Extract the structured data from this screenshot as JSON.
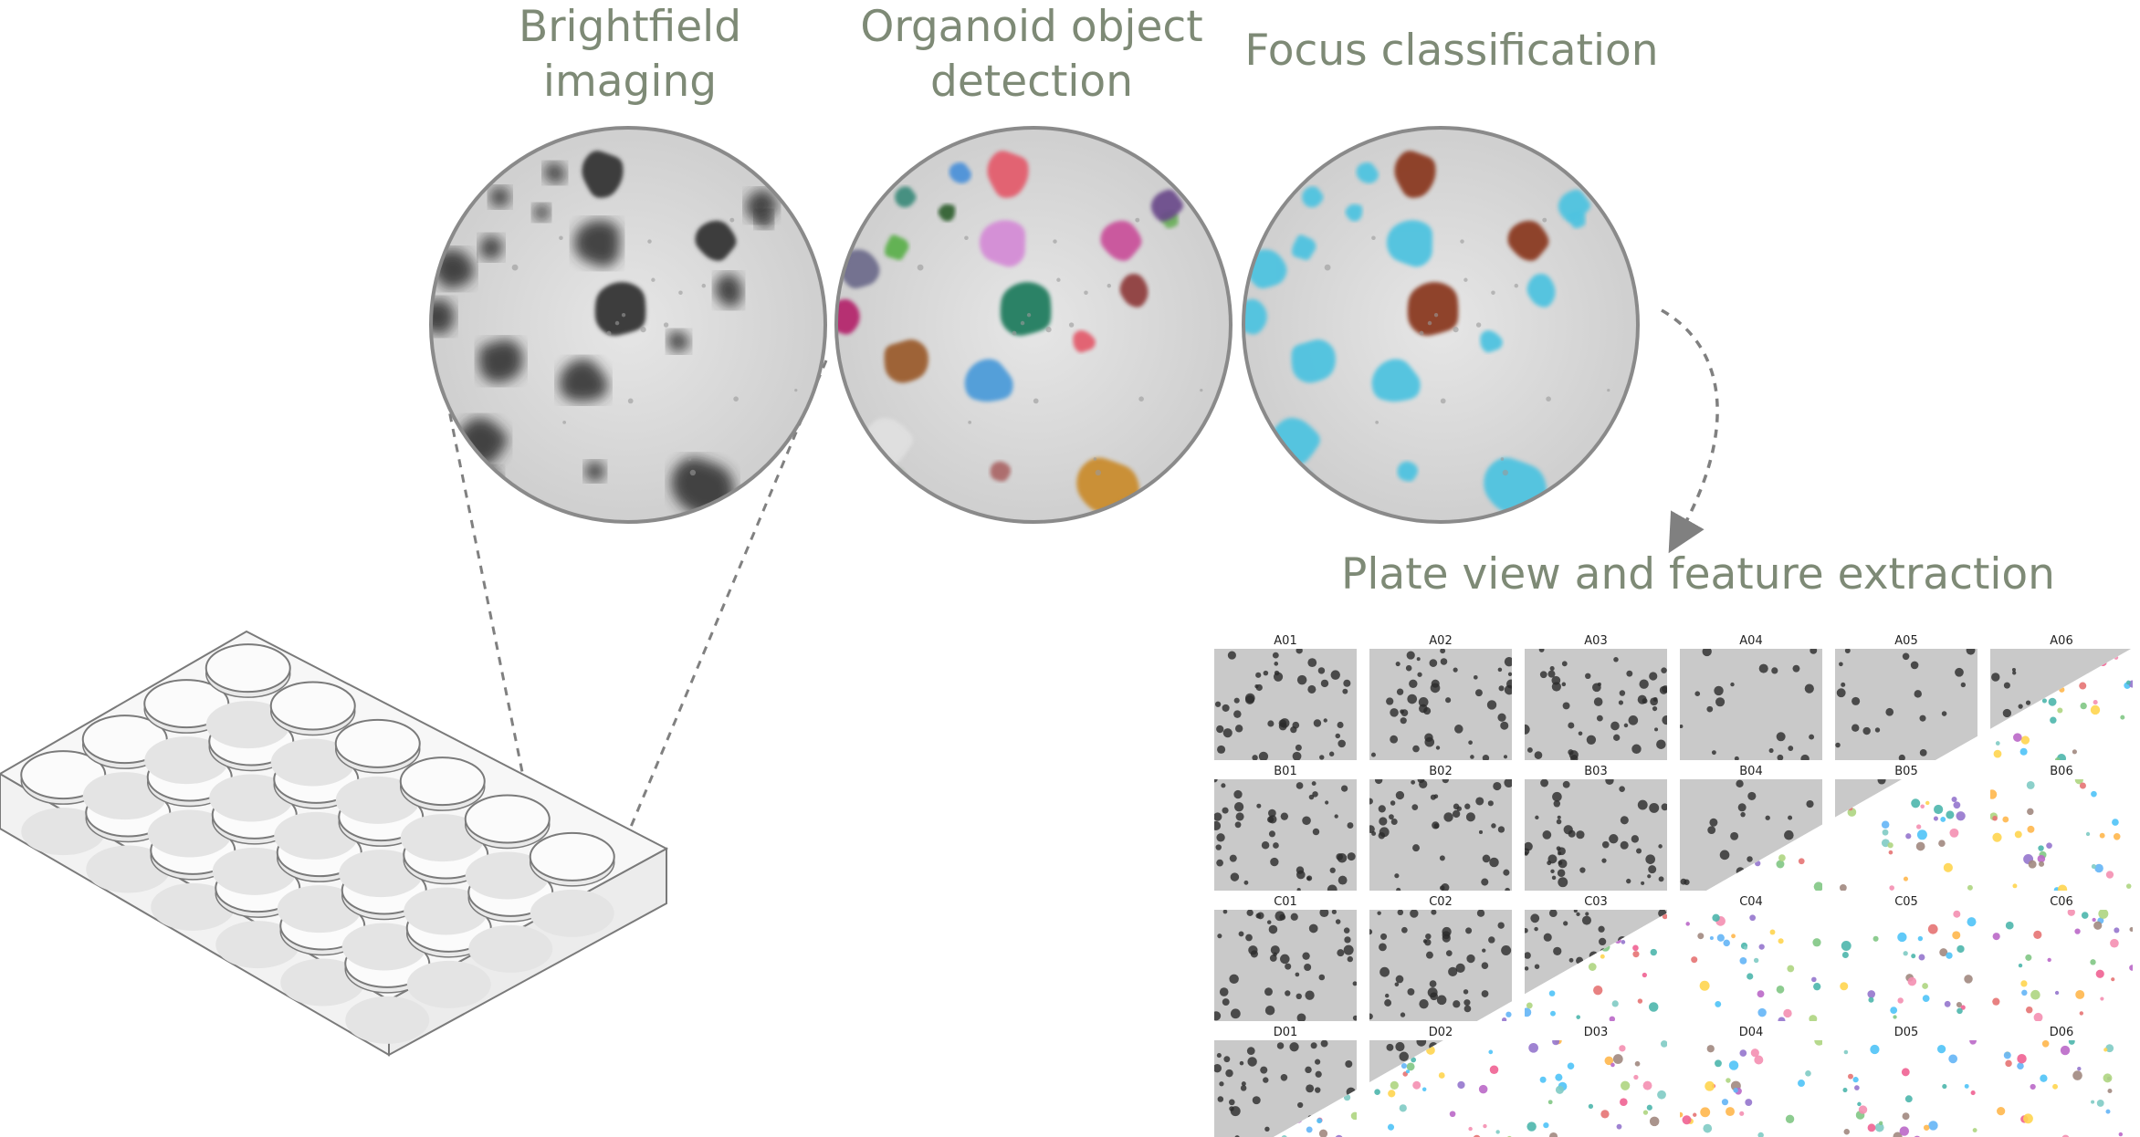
{
  "stages": [
    {
      "id": "brightfield",
      "title_line1": "Brightfield",
      "title_line2": "imaging"
    },
    {
      "id": "detection",
      "title_line1": "Organoid object",
      "title_line2": "detection"
    },
    {
      "id": "focus",
      "title_line1": "Focus classification"
    }
  ],
  "plate_view": {
    "title": "Plate view and feature extraction",
    "rows": [
      "A",
      "B",
      "C",
      "D"
    ],
    "columns": [
      "01",
      "02",
      "03",
      "04",
      "05",
      "06"
    ],
    "wells": [
      [
        "A01",
        "A02",
        "A03",
        "A04",
        "A05",
        "A06"
      ],
      [
        "B01",
        "B02",
        "B03",
        "B04",
        "B05",
        "B06"
      ],
      [
        "C01",
        "C02",
        "C03",
        "C04",
        "C05",
        "C06"
      ],
      [
        "D01",
        "D02",
        "D03",
        "D04",
        "D05",
        "D06"
      ]
    ]
  },
  "colors": {
    "title": "#7e8a76",
    "circle_border": "#8a8a8a",
    "dashed_line": "#808080",
    "in_focus": "#8b3a20",
    "out_of_focus": "#4fc3e0",
    "plate_stroke": "#7a7a7a"
  },
  "plate_layout": {
    "well_rows": 4,
    "well_columns": 6
  }
}
